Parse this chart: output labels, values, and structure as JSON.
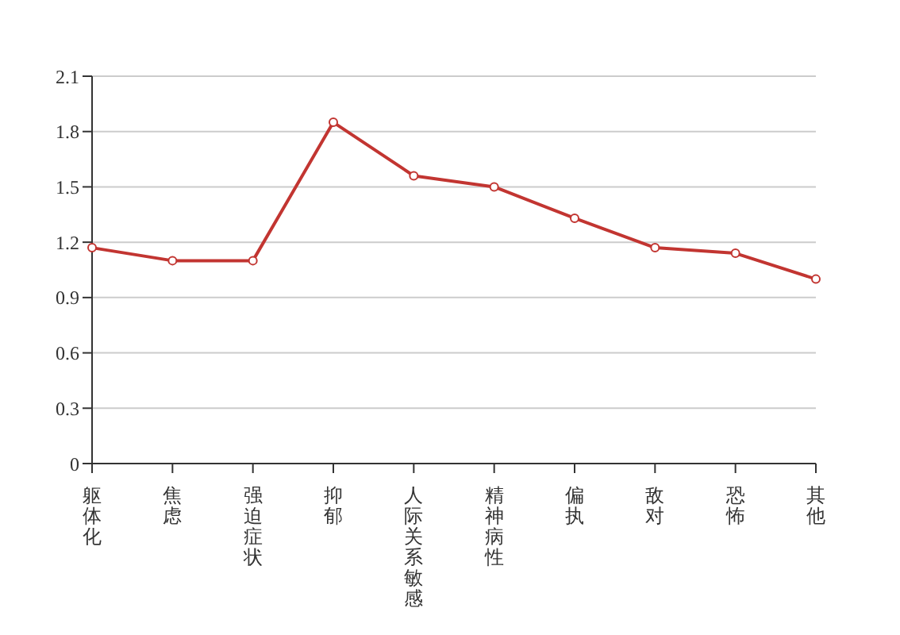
{
  "chart_data": {
    "type": "line",
    "categories": [
      "躯体化",
      "焦虑",
      "强迫症状",
      "抑郁",
      "人际关系敏感",
      "精神病性",
      "偏执",
      "敌对",
      "恐怖",
      "其他"
    ],
    "series": [
      {
        "color": "#c23531",
        "values": [
          1.17,
          1.1,
          1.1,
          1.85,
          1.56,
          1.5,
          1.33,
          1.17,
          1.14,
          1.0
        ]
      }
    ],
    "ylim": [
      0,
      2.1
    ],
    "yticks": [
      0,
      0.3,
      0.6,
      0.9,
      1.2,
      1.5,
      1.8,
      2.1
    ],
    "grid": "y",
    "legend": false,
    "marker": "circle",
    "line_style": "solid"
  }
}
